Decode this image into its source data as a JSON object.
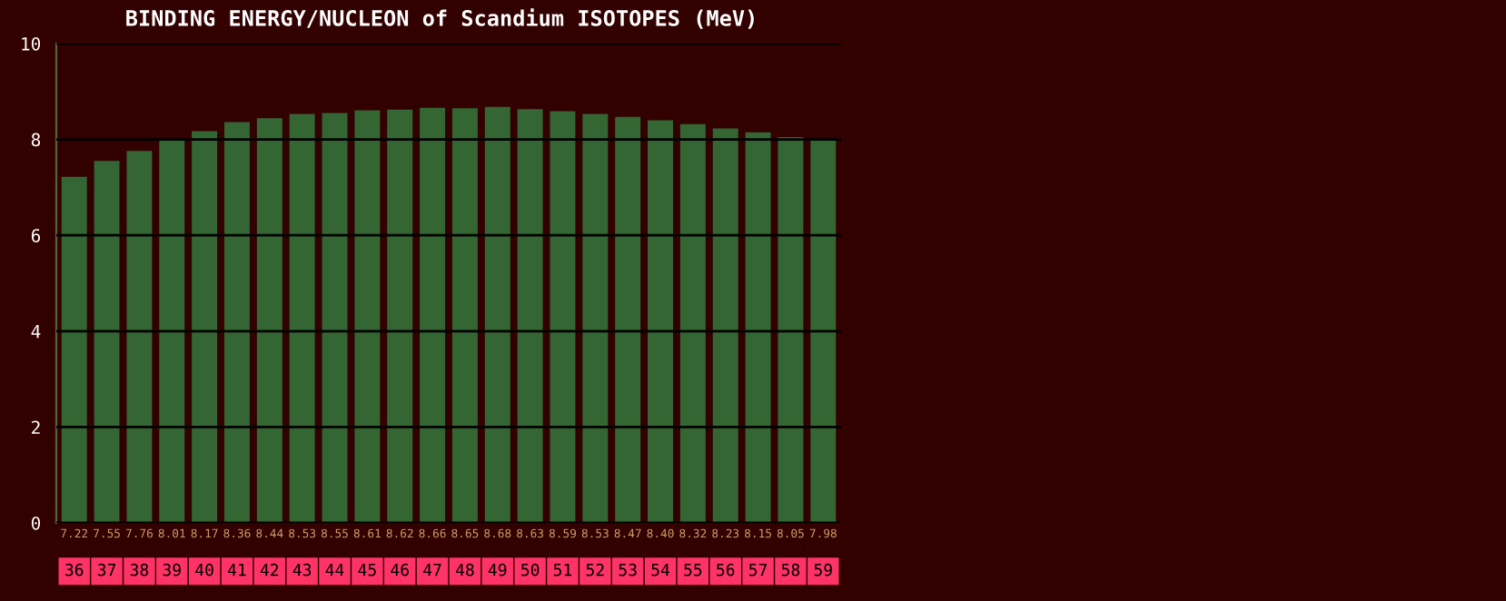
{
  "chart_data": {
    "type": "bar",
    "title": "BINDING ENERGY/NUCLEON of Scandium ISOTOPES (MeV)",
    "categories": [
      "36",
      "37",
      "38",
      "39",
      "40",
      "41",
      "42",
      "43",
      "44",
      "45",
      "46",
      "47",
      "48",
      "49",
      "50",
      "51",
      "52",
      "53",
      "54",
      "55",
      "56",
      "57",
      "58",
      "59"
    ],
    "values": [
      7.22,
      7.55,
      7.76,
      8.01,
      8.17,
      8.36,
      8.44,
      8.53,
      8.55,
      8.61,
      8.62,
      8.66,
      8.65,
      8.68,
      8.63,
      8.59,
      8.53,
      8.47,
      8.4,
      8.32,
      8.23,
      8.15,
      8.05,
      7.98
    ],
    "color": "#336633",
    "ylim": [
      0,
      10
    ],
    "yticks": [
      0,
      2,
      4,
      6,
      8,
      10
    ],
    "grid": "y",
    "value_labels": [
      "7.22",
      "7.55",
      "7.76",
      "8.01",
      "8.17",
      "8.36",
      "8.44",
      "8.53",
      "8.55",
      "8.61",
      "8.62",
      "8.66",
      "8.65",
      "8.68",
      "8.63",
      "8.59",
      "8.53",
      "8.47",
      "8.40",
      "8.32",
      "8.23",
      "8.15",
      "8.05",
      "7.98"
    ]
  }
}
